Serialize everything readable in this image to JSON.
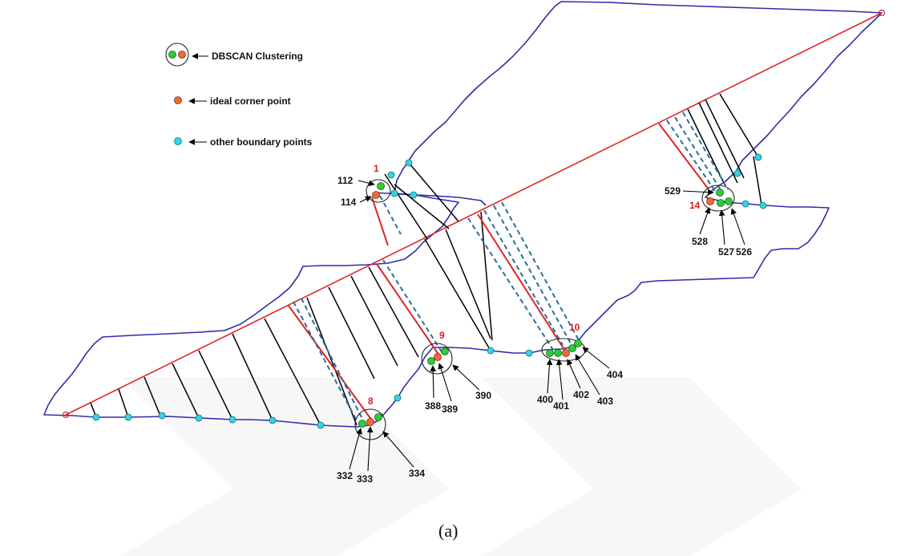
{
  "legend": {
    "items": [
      {
        "key": "dbscan",
        "label": "DBSCAN Clustering"
      },
      {
        "key": "ideal",
        "label": "ideal corner point"
      },
      {
        "key": "other",
        "label": "other boundary points"
      }
    ]
  },
  "groups": {
    "g1": {
      "number": "1",
      "points": [
        "112",
        "114"
      ]
    },
    "g8": {
      "number": "8",
      "points": [
        "332",
        "333",
        "334"
      ]
    },
    "g9": {
      "number": "9",
      "points": [
        "388",
        "389",
        "390"
      ]
    },
    "g10": {
      "number": "10",
      "points": [
        "400",
        "401",
        "402",
        "403",
        "404"
      ]
    },
    "g14": {
      "number": "14",
      "points": [
        "529",
        "528",
        "527",
        "526"
      ]
    }
  },
  "caption": "(a)",
  "colors": {
    "boundary": "#2e2ea8",
    "baseline": "#e02525",
    "green_point": "#2ecc3a",
    "orange_point": "#ef6a35",
    "cyan_point": "#33d4e6",
    "dashed_line": "#2b6f9a"
  }
}
